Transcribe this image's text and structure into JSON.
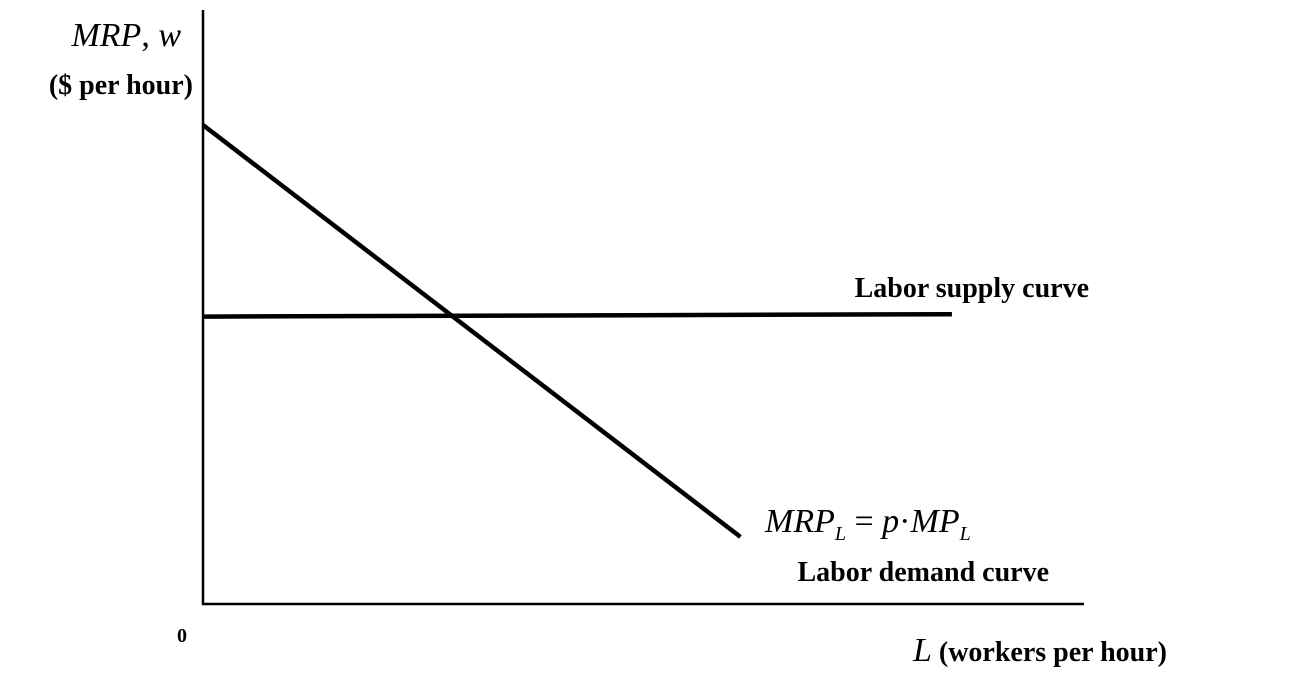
{
  "chart_data": {
    "type": "line",
    "title": "",
    "ylabel": {
      "line1_a": "MRP",
      "line1_sep": ", ",
      "line1_b": "w",
      "line2": "($ per hour)"
    },
    "xlabel": {
      "var": "L",
      "rest": "(workers per hour)"
    },
    "origin_label": "0",
    "grid": false,
    "legend": "none",
    "series": [
      {
        "name": "Labor supply curve",
        "points": [
          [
            0,
            6.0
          ],
          [
            8.5,
            6.05
          ]
        ]
      },
      {
        "name": "Labor demand curve",
        "points": [
          [
            0,
            10.0
          ],
          [
            6.1,
            1.4
          ]
        ]
      }
    ],
    "annotations": {
      "demand_formula": {
        "lhs": "MRP",
        "lhs_sub": "L",
        "eq": " = ",
        "p": "p",
        "dot": "·",
        "rhs": "MP",
        "rhs_sub": "L"
      }
    },
    "xlim": [
      0,
      10
    ],
    "ylim": [
      0,
      12.4
    ]
  },
  "colors": {
    "line": "#000000",
    "background": "#ffffff"
  }
}
